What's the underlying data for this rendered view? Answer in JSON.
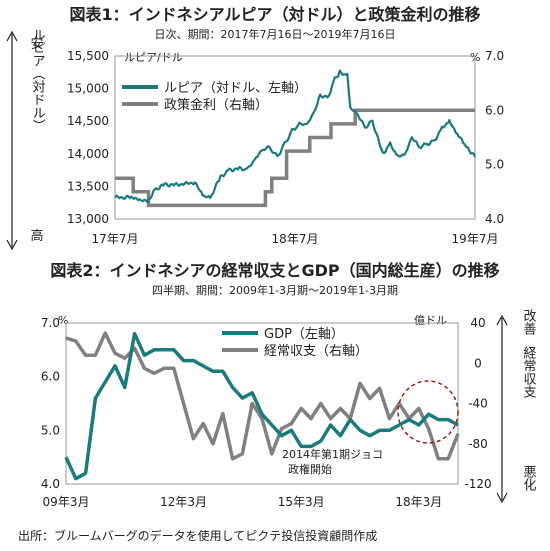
{
  "chart_data": [
    {
      "type": "line",
      "title": "図表1：インドネシアルピア（対ドル）と政策金利の推移",
      "subtitle": "日次、期間：2017年7月16日～2019年7月16日",
      "left_unit": "ルピア/ドル",
      "right_unit": "%",
      "left_side_label_top": "安",
      "left_side_label_bottom": "高",
      "left_side_label_mid": "ルピア（対ドル）",
      "x_ticks": [
        "17年7月",
        "18年7月",
        "19年7月"
      ],
      "x_range": [
        "2017-07-16",
        "2019-07-16"
      ],
      "ylim_left": [
        13000,
        15500
      ],
      "yticks_left": [
        "15,500",
        "15,000",
        "14,500",
        "14,000",
        "13,500",
        "13,000"
      ],
      "ylim_right": [
        4.0,
        7.0
      ],
      "yticks_right": [
        "7.0",
        "6.0",
        "5.0",
        "4.0"
      ],
      "legend_position": "top-left",
      "grid": false,
      "series": [
        {
          "name": "ルピア（対ドル、左軸）",
          "axis": "left",
          "color": "#1b7b7b",
          "points": [
            [
              "2017-07-16",
              13330
            ],
            [
              "2017-08-15",
              13330
            ],
            [
              "2017-09-01",
              13300
            ],
            [
              "2017-09-20",
              13260
            ],
            [
              "2017-10-05",
              13450
            ],
            [
              "2017-10-25",
              13530
            ],
            [
              "2017-11-15",
              13520
            ],
            [
              "2017-12-05",
              13540
            ],
            [
              "2017-12-25",
              13560
            ],
            [
              "2018-01-10",
              13360
            ],
            [
              "2018-01-25",
              13320
            ],
            [
              "2018-02-15",
              13650
            ],
            [
              "2018-03-05",
              13750
            ],
            [
              "2018-03-25",
              13770
            ],
            [
              "2018-04-10",
              13760
            ],
            [
              "2018-04-25",
              13900
            ],
            [
              "2018-05-10",
              14050
            ],
            [
              "2018-05-25",
              14100
            ],
            [
              "2018-06-10",
              13950
            ],
            [
              "2018-06-25",
              14150
            ],
            [
              "2018-07-10",
              14350
            ],
            [
              "2018-07-25",
              14450
            ],
            [
              "2018-08-10",
              14450
            ],
            [
              "2018-08-25",
              14650
            ],
            [
              "2018-09-05",
              14900
            ],
            [
              "2018-09-20",
              14850
            ],
            [
              "2018-10-05",
              15150
            ],
            [
              "2018-10-15",
              15250
            ],
            [
              "2018-10-30",
              15200
            ],
            [
              "2018-11-05",
              14700
            ],
            [
              "2018-11-20",
              14600
            ],
            [
              "2018-12-05",
              14400
            ],
            [
              "2018-12-20",
              14500
            ],
            [
              "2019-01-10",
              14000
            ],
            [
              "2019-01-25",
              14150
            ],
            [
              "2019-02-10",
              13950
            ],
            [
              "2019-02-25",
              14000
            ],
            [
              "2019-03-10",
              14250
            ],
            [
              "2019-03-25",
              14100
            ],
            [
              "2019-04-10",
              14150
            ],
            [
              "2019-04-25",
              14200
            ],
            [
              "2019-05-10",
              14400
            ],
            [
              "2019-05-25",
              14500
            ],
            [
              "2019-06-10",
              14300
            ],
            [
              "2019-06-25",
              14150
            ],
            [
              "2019-07-05",
              14050
            ],
            [
              "2019-07-16",
              13950
            ]
          ]
        },
        {
          "name": "政策金利（右軸）",
          "axis": "right",
          "color": "#808080",
          "points": [
            [
              "2017-07-16",
              4.75
            ],
            [
              "2017-08-22",
              4.75
            ],
            [
              "2017-08-22",
              4.5
            ],
            [
              "2017-09-22",
              4.5
            ],
            [
              "2017-09-22",
              4.25
            ],
            [
              "2018-05-17",
              4.25
            ],
            [
              "2018-05-17",
              4.5
            ],
            [
              "2018-05-30",
              4.5
            ],
            [
              "2018-05-30",
              4.75
            ],
            [
              "2018-06-29",
              4.75
            ],
            [
              "2018-06-29",
              5.25
            ],
            [
              "2018-08-15",
              5.25
            ],
            [
              "2018-08-15",
              5.5
            ],
            [
              "2018-09-27",
              5.5
            ],
            [
              "2018-09-27",
              5.75
            ],
            [
              "2018-11-15",
              5.75
            ],
            [
              "2018-11-15",
              6.0
            ],
            [
              "2019-07-16",
              6.0
            ]
          ]
        }
      ]
    },
    {
      "type": "line",
      "title": "図表2：インドネシアの経常収支とGDP（国内総生産）の推移",
      "subtitle": "四半期、期間：2009年1-3月期～2019年1-3月期",
      "left_unit": "%",
      "right_unit": "億ドル",
      "right_side_label_top": "改善",
      "right_side_label_mid": "経常収支",
      "right_side_label_bottom": "悪化",
      "x_ticks": [
        "09年3月",
        "12年3月",
        "15年3月",
        "18年3月"
      ],
      "ylim_left": [
        4.0,
        7.0
      ],
      "yticks_left": [
        "7.0",
        "6.0",
        "5.0",
        "4.0"
      ],
      "ylim_right": [
        -120,
        40
      ],
      "yticks_right": [
        "40",
        "0",
        "-40",
        "-80",
        "-120"
      ],
      "legend_position": "top-center",
      "grid": false,
      "annotation": [
        "2014年第1期ジョコ",
        "政権開始"
      ],
      "x_quarters": [
        "2009Q1",
        "2009Q2",
        "2009Q3",
        "2009Q4",
        "2010Q1",
        "2010Q2",
        "2010Q3",
        "2010Q4",
        "2011Q1",
        "2011Q2",
        "2011Q3",
        "2011Q4",
        "2012Q1",
        "2012Q2",
        "2012Q3",
        "2012Q4",
        "2013Q1",
        "2013Q2",
        "2013Q3",
        "2013Q4",
        "2014Q1",
        "2014Q2",
        "2014Q3",
        "2014Q4",
        "2015Q1",
        "2015Q2",
        "2015Q3",
        "2015Q4",
        "2016Q1",
        "2016Q2",
        "2016Q3",
        "2016Q4",
        "2017Q1",
        "2017Q2",
        "2017Q3",
        "2017Q4",
        "2018Q1",
        "2018Q2",
        "2018Q3",
        "2018Q4",
        "2019Q1"
      ],
      "series": [
        {
          "name": "GDP（左軸）",
          "axis": "left",
          "color": "#1b7b7b",
          "values": [
            4.5,
            4.1,
            4.2,
            5.6,
            5.9,
            6.2,
            5.8,
            6.8,
            6.4,
            6.5,
            6.5,
            6.5,
            6.3,
            6.3,
            6.2,
            6.1,
            6.1,
            5.8,
            5.6,
            5.7,
            5.3,
            5.1,
            4.9,
            5.0,
            4.7,
            4.7,
            4.8,
            5.1,
            4.9,
            5.2,
            5.0,
            4.9,
            5.0,
            5.0,
            5.1,
            5.2,
            5.1,
            5.3,
            5.2,
            5.2,
            5.1
          ]
        },
        {
          "name": "経常収支（右軸）",
          "axis": "right",
          "color": "#808080",
          "values": [
            25,
            22,
            8,
            8,
            30,
            10,
            5,
            15,
            -5,
            -10,
            -5,
            -5,
            -40,
            -75,
            -60,
            -80,
            -50,
            -95,
            -90,
            -40,
            -55,
            -90,
            -65,
            -60,
            -45,
            -55,
            -40,
            -55,
            -45,
            -55,
            -20,
            -35,
            -25,
            -55,
            -40,
            -55,
            -45,
            -65,
            -95,
            -95,
            -70
          ]
        }
      ]
    }
  ],
  "source": "出所：ブルームバーグのデータを使用してピクテ投信投資顧問作成",
  "colors": {
    "teal": "#1b7b7b",
    "gray": "#808080",
    "circle": "#a01010"
  }
}
